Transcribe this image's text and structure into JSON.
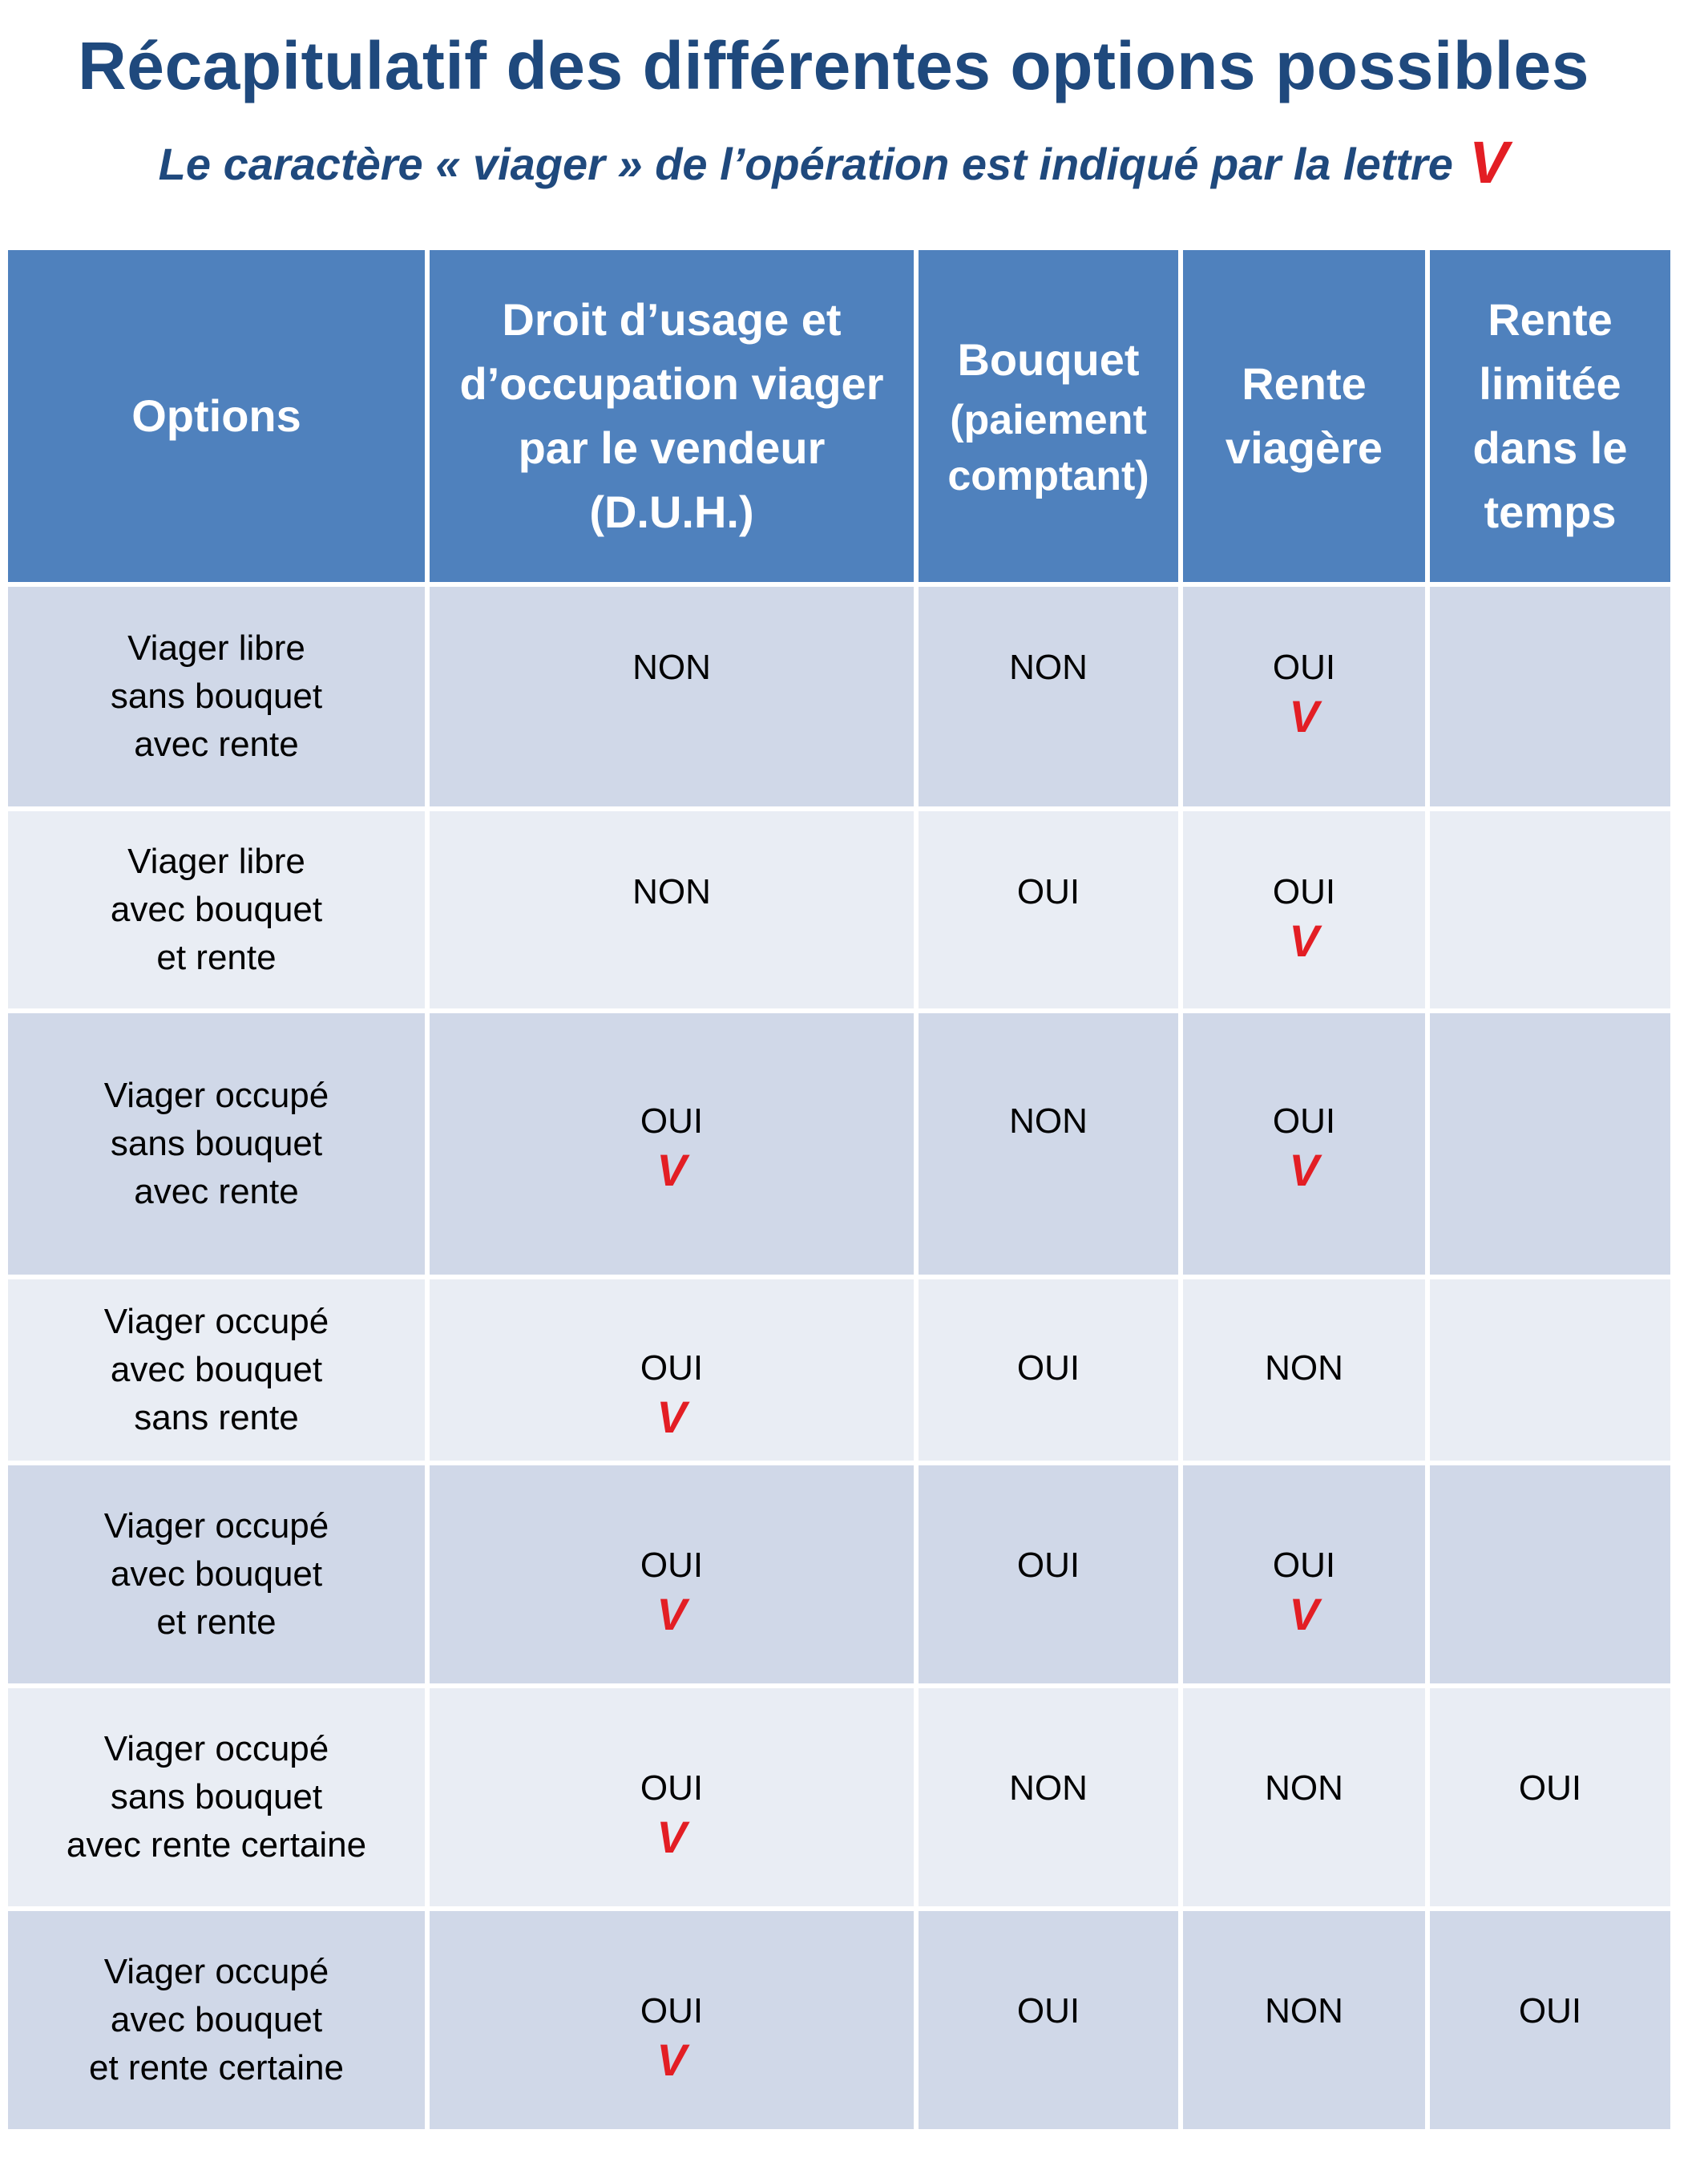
{
  "title": "Récapitulatif des différentes options possibles",
  "subtitle": {
    "text": "Le caractère « viager » de l’opération est indiqué par la lettre",
    "mark": "V"
  },
  "colors": {
    "title": "#1f497d",
    "header_bg": "#4f81bd",
    "row_odd_bg": "#d0d8e8",
    "row_even_bg": "#e9edf4",
    "viager_mark": "#e31e24"
  },
  "table": {
    "headers": [
      {
        "lines": [
          "Options"
        ],
        "sub": []
      },
      {
        "lines": [
          "Droit d’usage et",
          "d’occupation viager",
          "par le vendeur",
          "(D.U.H.)"
        ],
        "sub": []
      },
      {
        "lines": [
          "Bouquet"
        ],
        "sub": [
          "(paiement",
          "comptant)"
        ]
      },
      {
        "lines": [
          "Rente",
          "viagère"
        ],
        "sub": []
      },
      {
        "lines": [
          "Rente",
          "limitée",
          "dans le",
          "temps"
        ],
        "sub": []
      }
    ],
    "rows": [
      {
        "option": [
          "Viager libre",
          "sans bouquet",
          "avec rente"
        ],
        "cells": [
          {
            "value": "NON",
            "viager": false
          },
          {
            "value": "NON",
            "viager": false
          },
          {
            "value": "OUI",
            "viager": true
          },
          {
            "value": "",
            "viager": false
          }
        ]
      },
      {
        "option": [
          "Viager libre",
          "avec bouquet",
          "et rente"
        ],
        "cells": [
          {
            "value": "NON",
            "viager": false
          },
          {
            "value": "OUI",
            "viager": false
          },
          {
            "value": "OUI",
            "viager": true
          },
          {
            "value": "",
            "viager": false
          }
        ]
      },
      {
        "option": [
          "Viager occupé",
          "sans bouquet",
          "avec rente"
        ],
        "cells": [
          {
            "value": "OUI",
            "viager": true
          },
          {
            "value": "NON",
            "viager": false
          },
          {
            "value": "OUI",
            "viager": true
          },
          {
            "value": "",
            "viager": false
          }
        ]
      },
      {
        "option": [
          "Viager occupé",
          "avec bouquet",
          "sans rente"
        ],
        "cells": [
          {
            "value": "OUI",
            "viager": true
          },
          {
            "value": "OUI",
            "viager": false
          },
          {
            "value": "NON",
            "viager": false
          },
          {
            "value": "",
            "viager": false
          }
        ]
      },
      {
        "option": [
          "Viager occupé",
          "avec bouquet",
          "et rente"
        ],
        "cells": [
          {
            "value": "OUI",
            "viager": true
          },
          {
            "value": "OUI",
            "viager": false
          },
          {
            "value": "OUI",
            "viager": true
          },
          {
            "value": "",
            "viager": false
          }
        ]
      },
      {
        "option": [
          "Viager occupé",
          "sans bouquet",
          "avec rente certaine"
        ],
        "cells": [
          {
            "value": "OUI",
            "viager": true
          },
          {
            "value": "NON",
            "viager": false
          },
          {
            "value": "NON",
            "viager": false
          },
          {
            "value": "OUI",
            "viager": false
          }
        ]
      },
      {
        "option": [
          "Viager occupé",
          "avec bouquet",
          "et rente certaine"
        ],
        "cells": [
          {
            "value": "OUI",
            "viager": true
          },
          {
            "value": "OUI",
            "viager": false
          },
          {
            "value": "NON",
            "viager": false
          },
          {
            "value": "OUI",
            "viager": false
          }
        ]
      }
    ]
  }
}
